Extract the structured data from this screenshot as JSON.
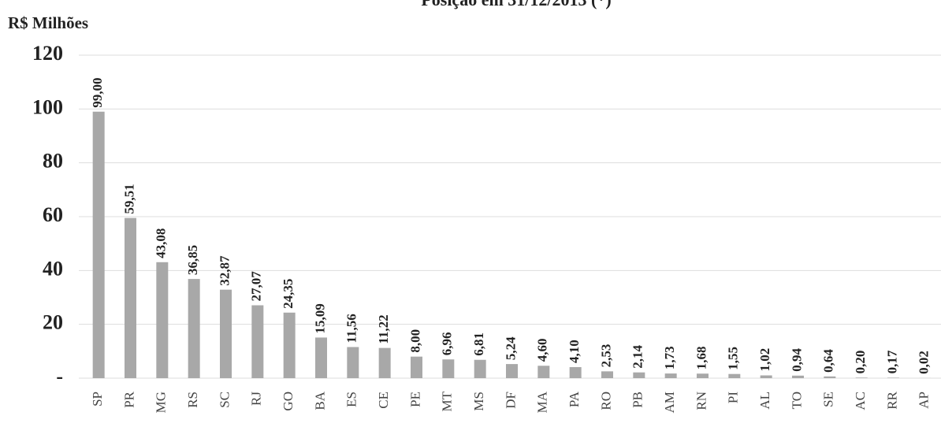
{
  "chart_data": {
    "type": "bar",
    "title": "Posição em 31/12/2013 (*)",
    "y_label": "R$ Milhões",
    "categories": [
      "SP",
      "PR",
      "MG",
      "RS",
      "SC",
      "RJ",
      "GO",
      "BA",
      "ES",
      "CE",
      "PE",
      "MT",
      "MS",
      "DF",
      "MA",
      "PA",
      "RO",
      "PB",
      "AM",
      "RN",
      "PI",
      "AL",
      "TO",
      "SE",
      "AC",
      "RR",
      "AP"
    ],
    "values": [
      99.0,
      59.51,
      43.08,
      36.85,
      32.87,
      27.07,
      24.35,
      15.09,
      11.56,
      11.22,
      8.0,
      6.96,
      6.81,
      5.24,
      4.6,
      4.1,
      2.53,
      2.14,
      1.73,
      1.68,
      1.55,
      1.02,
      0.94,
      0.64,
      0.2,
      0.17,
      0.02
    ],
    "value_labels": [
      "99,00",
      "59,51",
      "43,08",
      "36,85",
      "32,87",
      "27,07",
      "24,35",
      "15,09",
      "11,56",
      "11,22",
      "8,00",
      "6,96",
      "6,81",
      "5,24",
      "4,60",
      "4,10",
      "2,53",
      "2,14",
      "1,73",
      "1,68",
      "1,55",
      "1,02",
      "0,94",
      "0,64",
      "0,20",
      "0,17",
      "0,02"
    ],
    "color": "#a8a8a8",
    "ylim": [
      0,
      120
    ],
    "yticks": [
      {
        "value": 0,
        "label": "-"
      },
      20,
      40,
      60,
      80,
      100,
      120
    ],
    "grid": true
  }
}
